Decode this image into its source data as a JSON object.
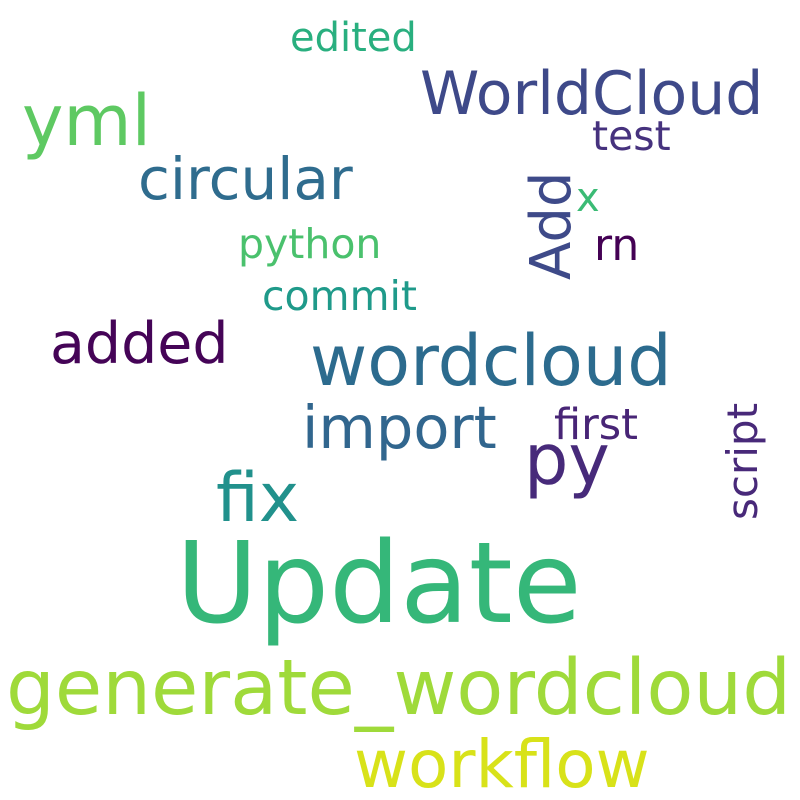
{
  "words": {
    "update": {
      "text": "Update",
      "color": "#35b779"
    },
    "generate_wordcloud": {
      "text": "generate_wordcloud",
      "color": "#9fda3a"
    },
    "workflow": {
      "text": "workflow",
      "color": "#d8e219"
    },
    "wordcloud": {
      "text": "wordcloud",
      "color": "#2c6b8e"
    },
    "fix": {
      "text": "fix",
      "color": "#21918c"
    },
    "py": {
      "text": "py",
      "color": "#472a7a"
    },
    "import": {
      "text": "import",
      "color": "#31668e"
    },
    "worldcloud": {
      "text": "WorldCloud",
      "color": "#3e4989"
    },
    "yml": {
      "text": "yml",
      "color": "#5ec962"
    },
    "circular": {
      "text": "circular",
      "color": "#2f6c8e"
    },
    "add": {
      "text": "Add",
      "color": "#3e4a89"
    },
    "added": {
      "text": "added",
      "color": "#450457"
    },
    "edited": {
      "text": "edited",
      "color": "#29af7f"
    },
    "test": {
      "text": "test",
      "color": "#46327e"
    },
    "python": {
      "text": "python",
      "color": "#4ac16d"
    },
    "commit": {
      "text": "commit",
      "color": "#1f9a8a"
    },
    "x": {
      "text": "x",
      "color": "#3bbb75"
    },
    "rn": {
      "text": "rn",
      "color": "#440154"
    },
    "first": {
      "text": "first",
      "color": "#482576"
    },
    "script": {
      "text": "script",
      "color": "#482979"
    }
  }
}
